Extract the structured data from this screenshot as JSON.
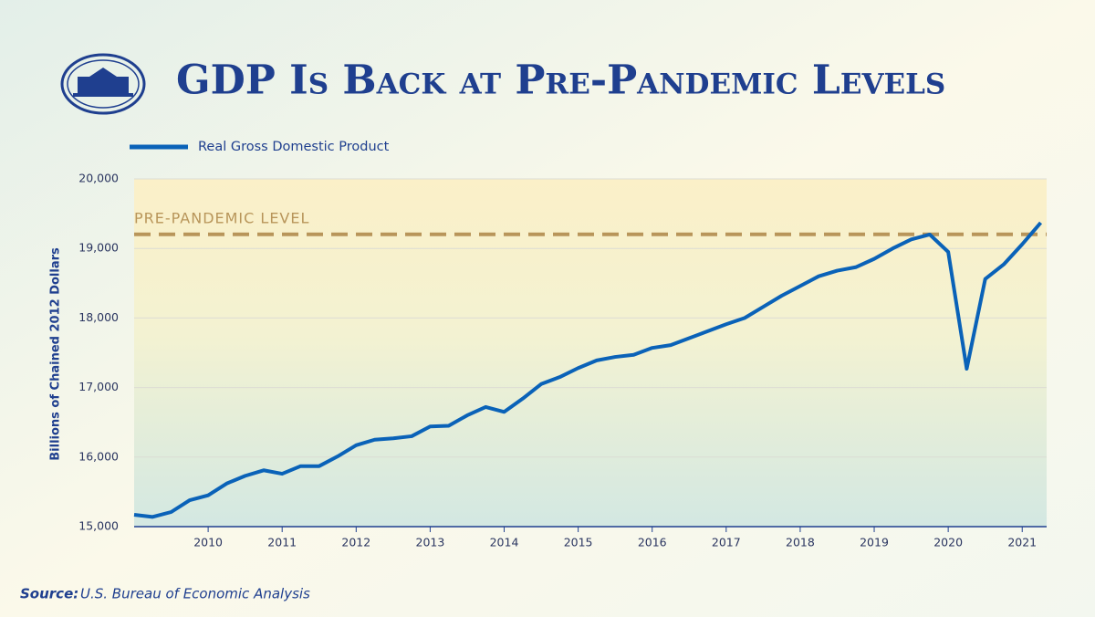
{
  "chart_data": {
    "type": "line",
    "title": "GDP Is Back at Pre-Pandemic Levels",
    "ylabel": "Billions of Chained 2012 Dollars",
    "x": [
      2009,
      2009.25,
      2009.5,
      2009.75,
      2010,
      2010.25,
      2010.5,
      2010.75,
      2011,
      2011.25,
      2011.5,
      2011.75,
      2012,
      2012.25,
      2012.5,
      2012.75,
      2013,
      2013.25,
      2013.5,
      2013.75,
      2014,
      2014.25,
      2014.5,
      2014.75,
      2015,
      2015.25,
      2015.5,
      2015.75,
      2016,
      2016.25,
      2016.5,
      2016.75,
      2017,
      2017.25,
      2017.5,
      2017.75,
      2018,
      2018.25,
      2018.5,
      2018.75,
      2019,
      2019.25,
      2019.5,
      2019.75,
      2020,
      2020.25,
      2020.5,
      2020.75,
      2021,
      2021.25
    ],
    "series": [
      {
        "name": "Real Gross Domestic Product",
        "color": "#0a62b8",
        "values": [
          15170,
          15140,
          15210,
          15380,
          15450,
          15620,
          15730,
          15810,
          15760,
          15870,
          15870,
          16010,
          16170,
          16250,
          16270,
          16300,
          16440,
          16450,
          16600,
          16720,
          16650,
          16840,
          17050,
          17150,
          17280,
          17390,
          17440,
          17470,
          17570,
          17610,
          17710,
          17810,
          17910,
          18000,
          18160,
          18320,
          18460,
          18600,
          18680,
          18730,
          18850,
          19000,
          19130,
          19200,
          18950,
          17270,
          18560,
          18770,
          19060,
          19370
        ]
      }
    ],
    "reference_line": {
      "label": "PRE-PANDEMIC LEVEL",
      "value": 19202,
      "color": "#b8955a"
    },
    "xlim": [
      2009,
      2021.33
    ],
    "xticks": [
      2010,
      2011,
      2012,
      2013,
      2014,
      2015,
      2016,
      2017,
      2018,
      2019,
      2020,
      2021
    ],
    "ylim": [
      15000,
      20000
    ],
    "yticks": [
      {
        "value": 15000,
        "label": "15,000"
      },
      {
        "value": 16000,
        "label": "16,000"
      },
      {
        "value": 17000,
        "label": "17,000"
      },
      {
        "value": 18000,
        "label": "18,000"
      },
      {
        "value": 19000,
        "label": "19,000"
      },
      {
        "value": 20000,
        "label": "20,000"
      }
    ],
    "grid": true,
    "source_label": "Source:",
    "source_text": "U.S. Bureau of Economic Analysis"
  }
}
